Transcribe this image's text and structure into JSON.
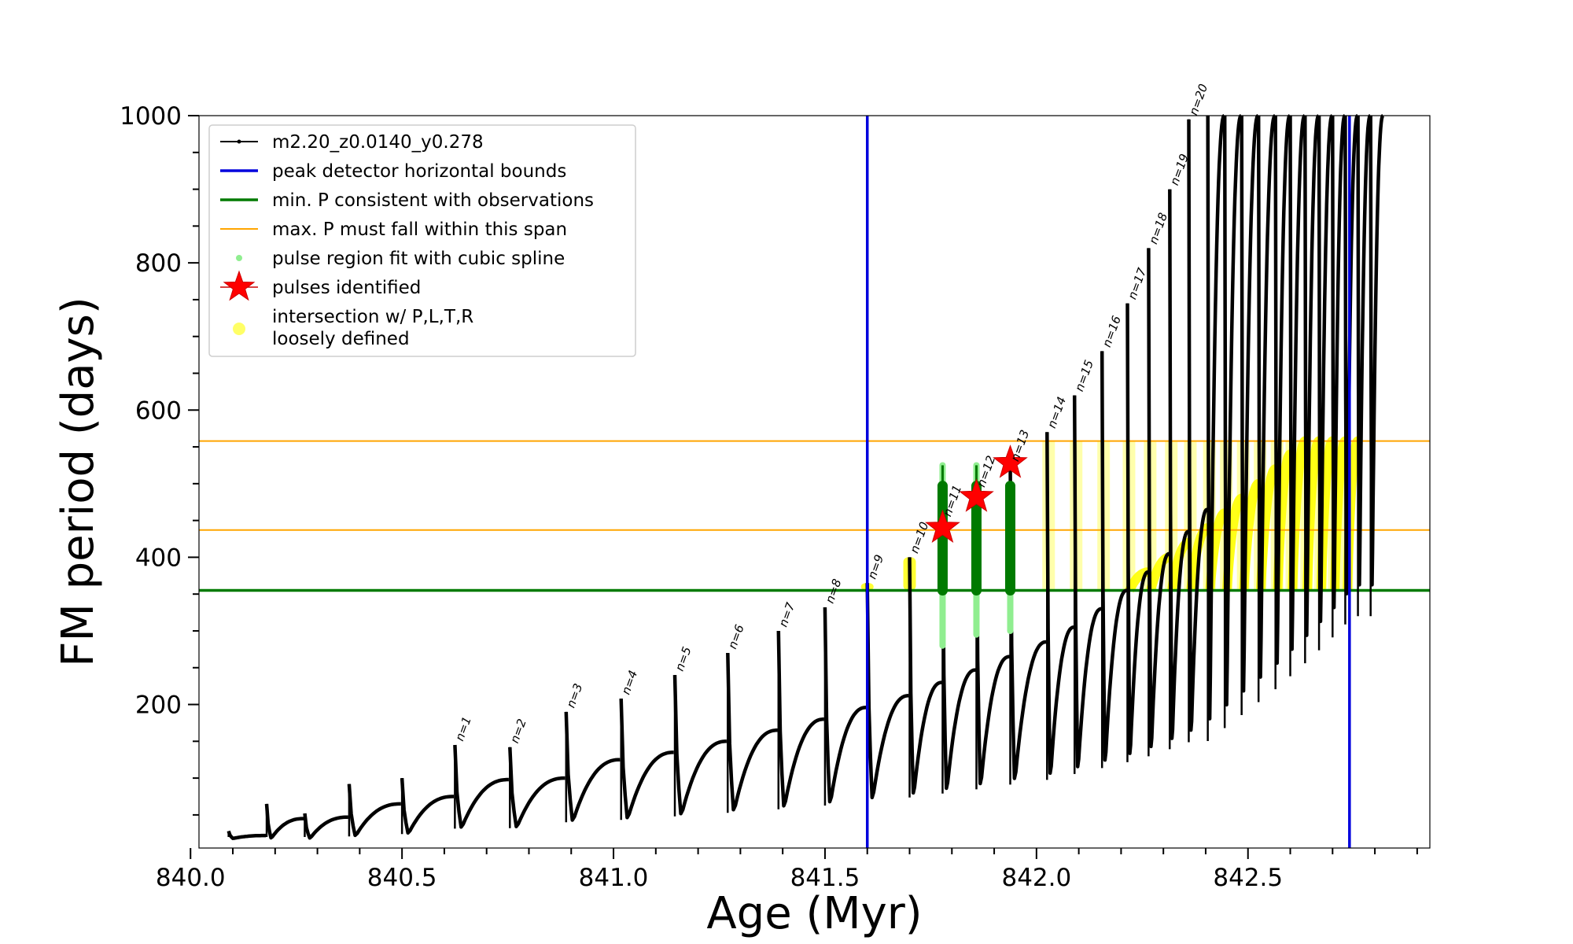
{
  "chart_data": {
    "type": "line",
    "title": "",
    "xlabel": "Age (Myr)",
    "ylabel": "FM period (days)",
    "xlim": [
      840.02,
      842.93
    ],
    "ylim": [
      5,
      1000
    ],
    "xticks": [
      840.0,
      840.5,
      841.0,
      841.5,
      842.0,
      842.5
    ],
    "xtick_labels": [
      "840.0",
      "840.5",
      "841.0",
      "841.5",
      "842.0",
      "842.5"
    ],
    "yticks": [
      200,
      400,
      600,
      800,
      1000
    ],
    "ytick_labels": [
      "200",
      "400",
      "600",
      "800",
      "1000"
    ],
    "grid": false,
    "legend_position": "upper-left",
    "legend": [
      {
        "key": "model",
        "label": "m2.20_z0.0140_y0.278",
        "color": "#000000",
        "marker": "line-dot"
      },
      {
        "key": "peak",
        "label": "peak detector horizontal bounds",
        "color": "#0000dd",
        "marker": "line"
      },
      {
        "key": "minp",
        "label": "min. P consistent with observations",
        "color": "#007a00",
        "marker": "line"
      },
      {
        "key": "maxp",
        "label": "max. P must fall within this span",
        "color": "#ffa500",
        "marker": "thin-line"
      },
      {
        "key": "spline",
        "label": "pulse region fit with cubic spline",
        "color": "#90ee90",
        "marker": "dot"
      },
      {
        "key": "pulse",
        "label": "pulses identified",
        "color": "#ff0000",
        "marker": "star"
      },
      {
        "key": "inter",
        "label": [
          "intersection w/ P,L,T,R",
          "loosely defined"
        ],
        "color": "#ffff66",
        "marker": "circle"
      }
    ],
    "vertical_lines": {
      "color": "#0000dd",
      "x": [
        841.6,
        842.74
      ]
    },
    "horizontal_lines": [
      {
        "y": 355,
        "color": "#007a00"
      },
      {
        "y": 437,
        "color": "#ffa500"
      },
      {
        "y": 558,
        "color": "#ffa500"
      }
    ],
    "pulses": [
      {
        "label": "n=1",
        "x": 840.625,
        "peak": 145,
        "base": 98
      },
      {
        "label": "n=2",
        "x": 840.755,
        "peak": 142,
        "base": 100
      },
      {
        "label": "n=3",
        "x": 840.888,
        "peak": 190,
        "base": 125
      },
      {
        "label": "n=4",
        "x": 841.018,
        "peak": 208,
        "base": 135
      },
      {
        "label": "n=5",
        "x": 841.145,
        "peak": 240,
        "base": 150
      },
      {
        "label": "n=6",
        "x": 841.27,
        "peak": 270,
        "base": 165
      },
      {
        "label": "n=7",
        "x": 841.39,
        "peak": 300,
        "base": 180
      },
      {
        "label": "n=8",
        "x": 841.5,
        "peak": 332,
        "base": 196
      },
      {
        "label": "n=9",
        "x": 841.6,
        "peak": 365,
        "base": 212
      },
      {
        "label": "n=10",
        "x": 841.7,
        "peak": 400,
        "base": 230
      },
      {
        "label": "n=11",
        "x": 841.778,
        "peak": 450,
        "base": 247
      },
      {
        "label": "n=12",
        "x": 841.858,
        "peak": 490,
        "base": 265
      },
      {
        "label": "n=13",
        "x": 841.938,
        "peak": 525,
        "base": 285
      },
      {
        "label": "n=14",
        "x": 842.025,
        "peak": 570,
        "base": 305
      },
      {
        "label": "n=15",
        "x": 842.09,
        "peak": 620,
        "base": 330
      },
      {
        "label": "n=16",
        "x": 842.155,
        "peak": 680,
        "base": 355
      },
      {
        "label": "n=17",
        "x": 842.215,
        "peak": 745,
        "base": 380
      },
      {
        "label": "n=18",
        "x": 842.265,
        "peak": 820,
        "base": 405
      },
      {
        "label": "n=19",
        "x": 842.315,
        "peak": 900,
        "base": 435
      },
      {
        "label": "n=20",
        "x": 842.36,
        "peak": 995,
        "base": 465
      }
    ],
    "early_pulses": [
      {
        "x": 840.09,
        "peak": 28,
        "base": 22
      },
      {
        "x": 840.18,
        "peak": 65,
        "base": 45
      },
      {
        "x": 840.27,
        "peak": 52,
        "base": 47
      },
      {
        "x": 840.375,
        "peak": 92,
        "base": 65
      },
      {
        "x": 840.5,
        "peak": 100,
        "base": 75
      }
    ],
    "late_pulses": [
      842.405,
      842.445,
      842.485,
      842.525,
      842.565,
      842.6,
      842.635,
      842.668,
      842.7,
      842.73,
      842.76,
      842.79
    ],
    "pulses_identified": [
      {
        "x": 841.778,
        "y": 440
      },
      {
        "x": 841.858,
        "y": 482
      },
      {
        "x": 841.938,
        "y": 528
      }
    ],
    "spline_regions": [
      {
        "x": 841.778,
        "ymin": 280,
        "ymax": 525,
        "core": [
          355,
          497
        ]
      },
      {
        "x": 841.858,
        "ymin": 295,
        "ymax": 525,
        "core": [
          355,
          497
        ]
      },
      {
        "x": 841.938,
        "ymin": 300,
        "ymax": 495,
        "core": [
          355,
          497
        ]
      }
    ]
  }
}
